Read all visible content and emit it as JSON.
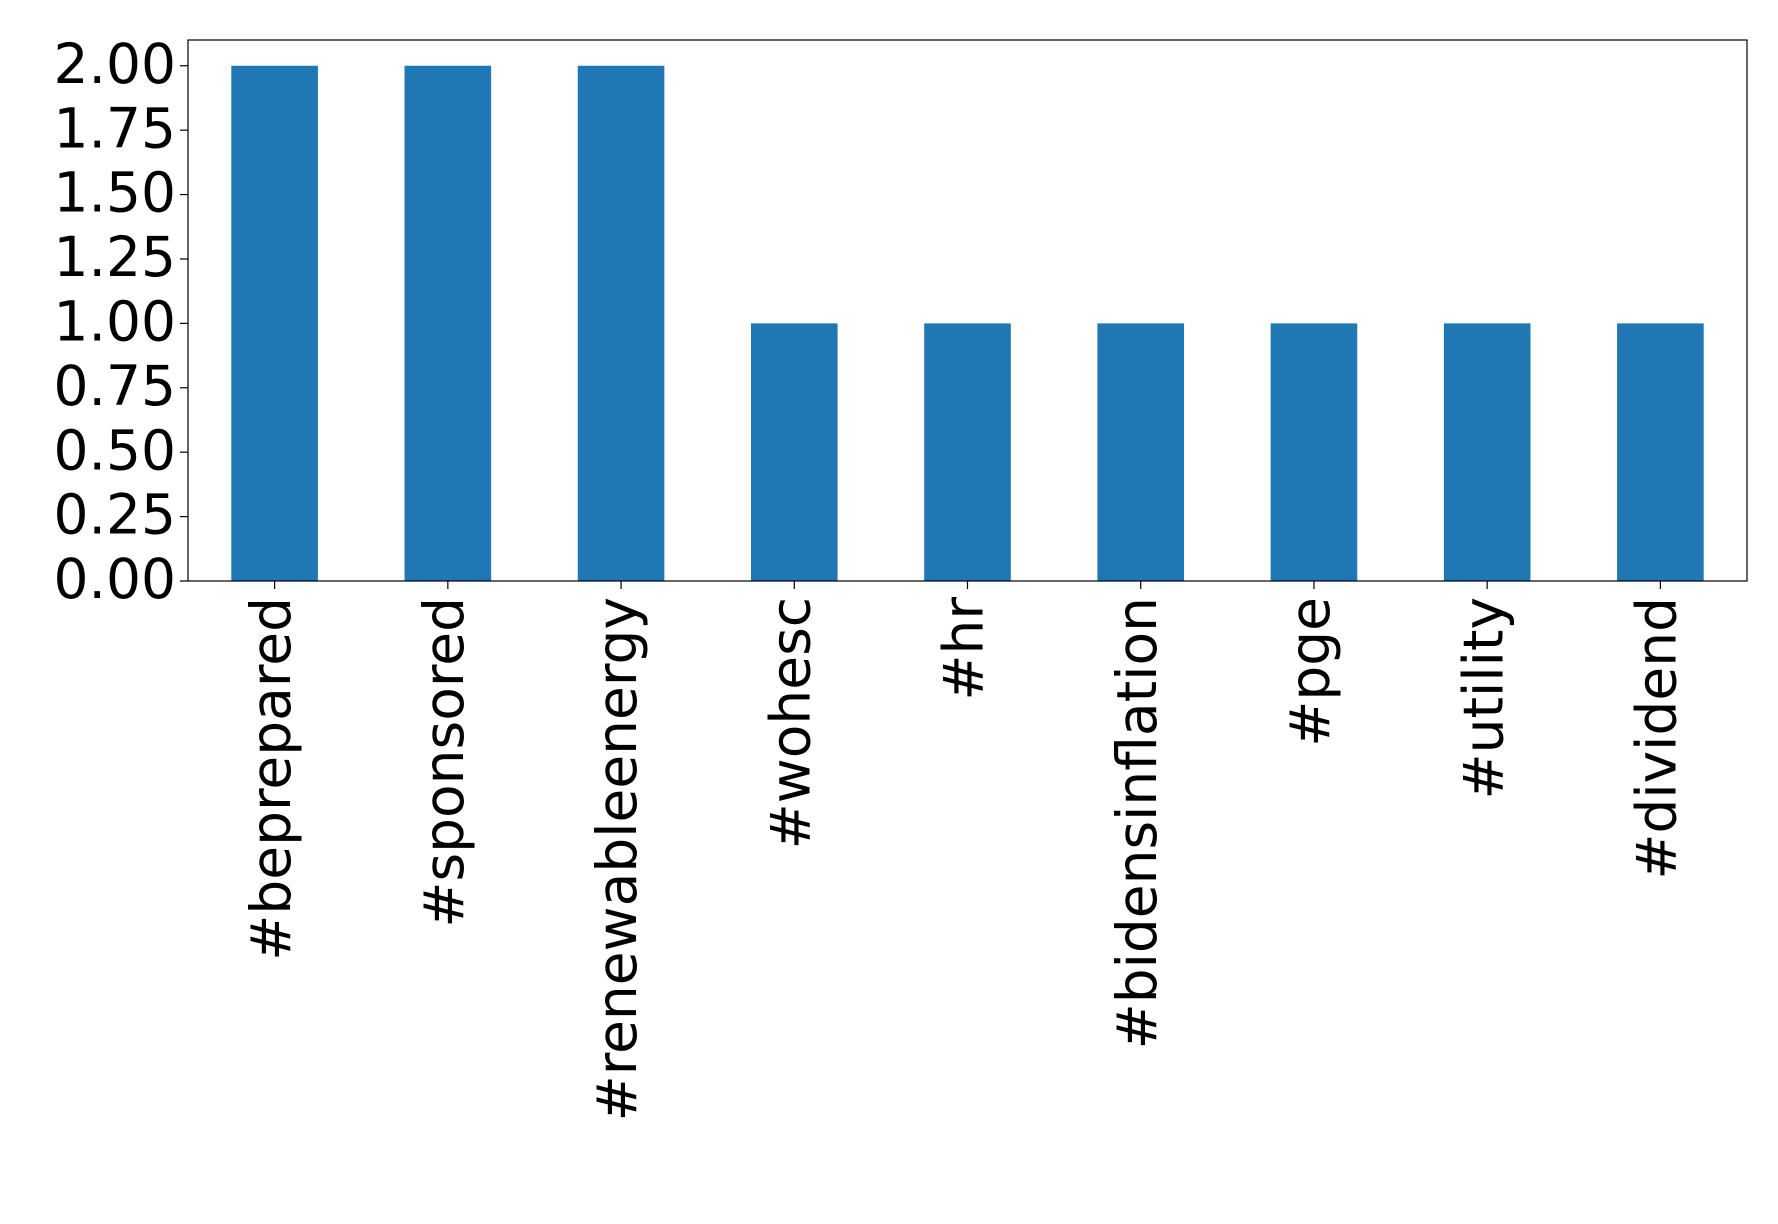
{
  "chart_data": {
    "type": "bar",
    "categories": [
      "#beprepared",
      "#sponsored",
      "#renewableenergy",
      "#wohesc",
      "#hr",
      "#bidensinflation",
      "#pge",
      "#utility",
      "#dividend"
    ],
    "values": [
      2,
      2,
      2,
      1,
      1,
      1,
      1,
      1,
      1
    ],
    "color": "#1f77b4",
    "ylim": [
      0,
      2.1
    ],
    "yticks": [
      {
        "value": 0,
        "label": "0.00"
      },
      {
        "value": 0.25,
        "label": "0.25"
      },
      {
        "value": 0.5,
        "label": "0.50"
      },
      {
        "value": 0.75,
        "label": "0.75"
      },
      {
        "value": 1,
        "label": "1.00"
      },
      {
        "value": 1.25,
        "label": "1.25"
      },
      {
        "value": 1.5,
        "label": "1.50"
      },
      {
        "value": 1.75,
        "label": "1.75"
      },
      {
        "value": 2,
        "label": "2.00"
      }
    ],
    "grid": false
  }
}
